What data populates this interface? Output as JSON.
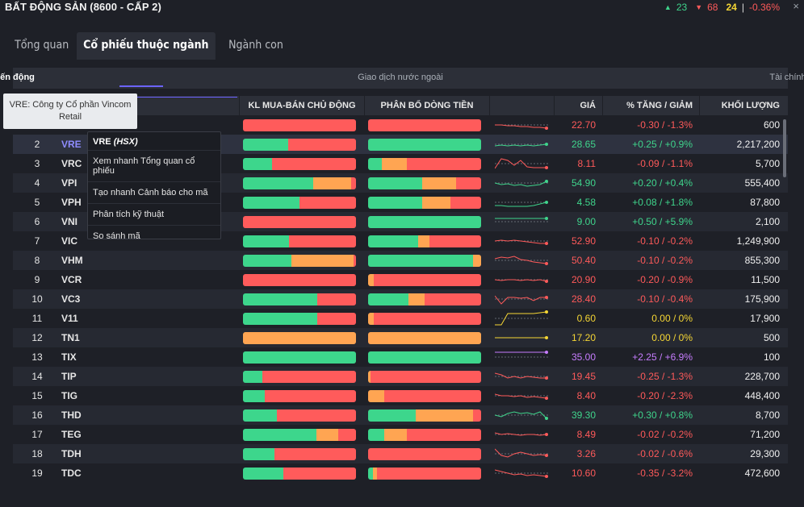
{
  "header": {
    "title": "BẤT ĐỘNG SẢN (8600 - CẤP 2)",
    "up_count": "23",
    "down_count": "68",
    "neutral_count": "24",
    "separator": "|",
    "change": "-0.36%",
    "up_icon": "▲",
    "down_icon": "▼",
    "close_icon": "×"
  },
  "tabs": [
    "Tổng quan",
    "Cổ phiếu thuộc ngành",
    "Ngành con"
  ],
  "subtabs": [
    "Biến động",
    "Giao dịch nước ngoài",
    "Tài chính"
  ],
  "columns": {
    "active_buy_sell": "KL MUA-BÁN CHỦ ĐỘNG",
    "money_flow": "PHÂN BỔ DÒNG TIỀN",
    "price": "GIÁ",
    "change": "% TĂNG / GIẢM",
    "volume": "KHỐI LƯỢNG"
  },
  "colors": {
    "up": "#3fd58c",
    "down": "#ff5a5a",
    "ref": "#f5d634",
    "ceiling": "#c77dff",
    "accent": "#6c63ff"
  },
  "tooltip": {
    "line1": "VRE: Công ty Cổ phần Vincom",
    "line2": "Retail"
  },
  "context_menu": {
    "symbol": "VRE",
    "exchange": "(HSX)",
    "items": [
      "Xem nhanh Tổng quan cổ phiếu",
      "Tạo nhanh Cảnh báo cho mã",
      "Phân tích kỹ thuật",
      "So sánh mã"
    ]
  },
  "rows": [
    {
      "idx": "1",
      "sym": "VRE",
      "b1": [
        0,
        100,
        0
      ],
      "b2": [
        0,
        0,
        100
      ],
      "price": "22.70",
      "chg": "-0.30 / -1.3%",
      "vol": "600",
      "tone": "down",
      "spark": [
        10,
        10,
        11,
        11,
        12,
        12,
        13,
        13,
        14
      ]
    },
    {
      "idx": "2",
      "sym": "VRE",
      "b1": [
        40,
        60,
        0
      ],
      "b2": [
        100,
        0,
        0
      ],
      "price": "28.65",
      "chg": "+0.25 / +0.9%",
      "vol": "2,217,200",
      "tone": "up",
      "spark": [
        12,
        11,
        12,
        11,
        12,
        11,
        12,
        11,
        10
      ]
    },
    {
      "idx": "3",
      "sym": "VRC",
      "b1": [
        26,
        74,
        0
      ],
      "b2": [
        12,
        22,
        66
      ],
      "price": "8.11",
      "chg": "-0.09 / -1.1%",
      "vol": "5,700",
      "tone": "down",
      "spark": [
        16,
        4,
        6,
        12,
        6,
        14,
        15,
        15,
        15
      ]
    },
    {
      "idx": "4",
      "sym": "VPI",
      "b1": [
        62,
        4,
        34
      ],
      "b2": [
        0,
        0,
        0
      ],
      "b2x": [
        48,
        30,
        22
      ],
      "price": "54.90",
      "chg": "+0.20 / +0.4%",
      "vol": "555,400",
      "tone": "up",
      "spark": [
        10,
        12,
        11,
        13,
        12,
        14,
        13,
        12,
        8
      ]
    },
    {
      "idx": "5",
      "sym": "VPH",
      "b1": [
        50,
        50,
        0
      ],
      "b2x": [
        48,
        25,
        27
      ],
      "price": "4.58",
      "chg": "+0.08 / +1.8%",
      "vol": "87,800",
      "tone": "up",
      "spark": [
        14,
        14,
        15,
        15,
        15,
        15,
        14,
        12,
        10
      ]
    },
    {
      "idx": "6",
      "sym": "VNI",
      "b1": [
        0,
        100,
        0
      ],
      "b2": [
        100,
        0,
        0
      ],
      "price": "9.00",
      "chg": "+0.50 / +5.9%",
      "vol": "2,100",
      "tone": "up",
      "spark": [
        6,
        6,
        6,
        6,
        6,
        6,
        6,
        6,
        6
      ]
    },
    {
      "idx": "7",
      "sym": "VIC",
      "b1": [
        41,
        59,
        0
      ],
      "b2x": [
        44,
        10,
        46
      ],
      "price": "52.90",
      "chg": "-0.10 / -0.2%",
      "vol": "1,249,900",
      "tone": "down",
      "spark": [
        10,
        9,
        10,
        9,
        10,
        11,
        12,
        13,
        13
      ]
    },
    {
      "idx": "8",
      "sym": "VHM",
      "b1": [
        43,
        2,
        55
      ],
      "b2x": [
        93,
        7,
        0
      ],
      "price": "50.40",
      "chg": "-0.10 / -0.2%",
      "vol": "855,300",
      "tone": "down",
      "spark": [
        8,
        6,
        7,
        5,
        9,
        10,
        12,
        13,
        14
      ]
    },
    {
      "idx": "9",
      "sym": "VCR",
      "b1": [
        0,
        100,
        0
      ],
      "b2x": [
        0,
        5,
        95
      ],
      "price": "20.90",
      "chg": "-0.20 / -0.9%",
      "vol": "11,500",
      "tone": "down",
      "spark": [
        10,
        11,
        10,
        10,
        11,
        10,
        11,
        10,
        12
      ]
    },
    {
      "idx": "10",
      "sym": "VC3",
      "b1": [
        66,
        34,
        0
      ],
      "b2x": [
        36,
        14,
        50
      ],
      "price": "28.40",
      "chg": "-0.10 / -0.4%",
      "vol": "175,900",
      "tone": "down",
      "spark": [
        6,
        16,
        8,
        8,
        9,
        8,
        12,
        8,
        8
      ]
    },
    {
      "idx": "11",
      "sym": "V11",
      "b1": [
        66,
        34,
        0
      ],
      "b2x": [
        0,
        5,
        95
      ],
      "price": "0.60",
      "chg": "0.00 / 0%",
      "vol": "17,900",
      "tone": "ref",
      "spark": [
        18,
        18,
        4,
        4,
        4,
        4,
        4,
        3,
        2
      ]
    },
    {
      "idx": "12",
      "sym": "TN1",
      "b1": [
        0,
        0,
        100
      ],
      "b2x": [
        0,
        100,
        0
      ],
      "price": "17.20",
      "chg": "0.00 / 0%",
      "vol": "500",
      "tone": "ref",
      "spark": [
        10,
        10,
        10,
        10,
        10,
        10,
        10,
        10,
        10
      ]
    },
    {
      "idx": "13",
      "sym": "TIX",
      "b1": [
        100,
        0,
        0
      ],
      "b2x": [
        100,
        0,
        0
      ],
      "price": "35.00",
      "chg": "+2.25 / +6.9%",
      "vol": "100",
      "tone": "ceiling",
      "spark": [
        4,
        4,
        4,
        4,
        4,
        4,
        4,
        4,
        4
      ]
    },
    {
      "idx": "14",
      "sym": "TIP",
      "b1": [
        17,
        83,
        0
      ],
      "b2x": [
        0,
        2,
        98
      ],
      "price": "19.45",
      "chg": "-0.25 / -1.3%",
      "vol": "228,700",
      "tone": "down",
      "spark": [
        6,
        8,
        12,
        10,
        12,
        10,
        11,
        12,
        12
      ]
    },
    {
      "idx": "15",
      "sym": "TIG",
      "b1": [
        19,
        81,
        0
      ],
      "b2x": [
        0,
        14,
        86
      ],
      "price": "8.40",
      "chg": "-0.20 / -2.3%",
      "vol": "448,400",
      "tone": "down",
      "spark": [
        8,
        10,
        10,
        11,
        10,
        12,
        11,
        12,
        13
      ]
    },
    {
      "idx": "16",
      "sym": "THD",
      "b1": [
        30,
        70,
        0
      ],
      "b2x": [
        42,
        51,
        7
      ],
      "price": "39.30",
      "chg": "+0.30 / +0.8%",
      "vol": "8,700",
      "tone": "up",
      "spark": [
        10,
        12,
        8,
        6,
        8,
        7,
        9,
        6,
        14
      ]
    },
    {
      "idx": "17",
      "sym": "TEG",
      "b1": [
        65,
        16,
        19
      ],
      "b2x": [
        14,
        20,
        66
      ],
      "price": "8.49",
      "chg": "-0.02 / -0.2%",
      "vol": "71,200",
      "tone": "down",
      "spark": [
        8,
        10,
        9,
        10,
        11,
        10,
        10,
        11,
        10
      ]
    },
    {
      "idx": "18",
      "sym": "TDH",
      "b1": [
        28,
        72,
        0
      ],
      "b2x": [
        0,
        0,
        100
      ],
      "price": "3.26",
      "chg": "-0.02 / -0.6%",
      "vol": "29,300",
      "tone": "down",
      "spark": [
        4,
        12,
        14,
        10,
        8,
        10,
        12,
        11,
        12
      ]
    },
    {
      "idx": "19",
      "sym": "TDC",
      "b1": [
        36,
        64,
        0
      ],
      "b2x": [
        4,
        4,
        92
      ],
      "price": "10.60",
      "chg": "-0.35 / -3.2%",
      "vol": "472,600",
      "tone": "down",
      "spark": [
        6,
        8,
        10,
        12,
        11,
        13,
        12,
        13,
        14
      ]
    }
  ]
}
